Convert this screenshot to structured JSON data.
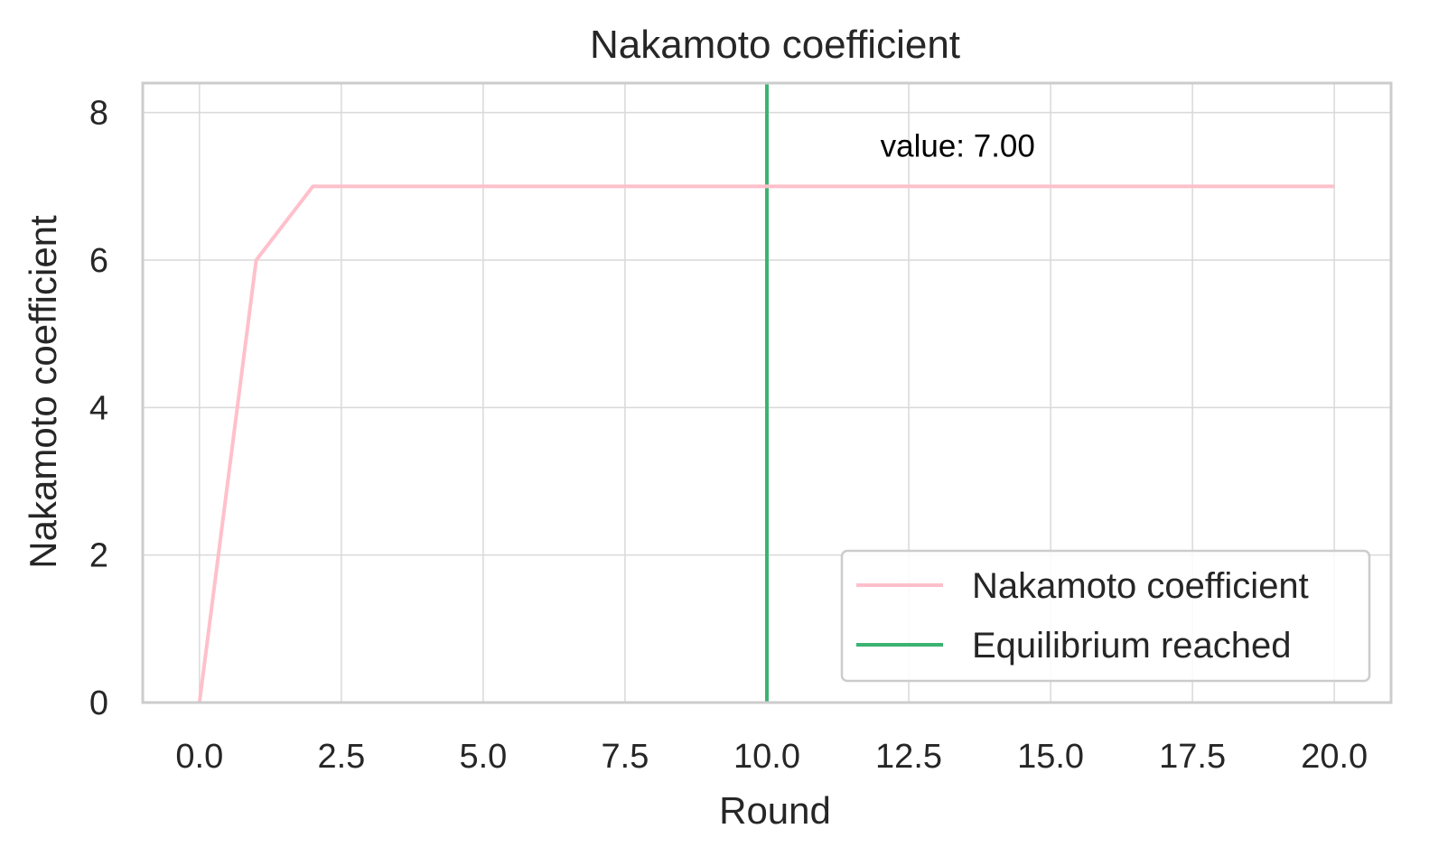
{
  "colors": {
    "series": "#ffc0cb",
    "equilibrium": "#3cb371",
    "grid": "#d9d9d9",
    "frame": "#cccccc",
    "text": "#262626"
  },
  "chart_data": {
    "type": "line",
    "title": "Nakamoto coefficient",
    "xlabel": "Round",
    "ylabel": "Nakamoto coefficient",
    "xlim": [
      -1,
      21
    ],
    "ylim": [
      0,
      8.4
    ],
    "grid": true,
    "x_ticks": [
      0,
      2.5,
      5,
      7.5,
      10,
      12.5,
      15,
      17.5,
      20
    ],
    "x_tick_labels": [
      "0.0",
      "2.5",
      "5.0",
      "7.5",
      "10.0",
      "12.5",
      "15.0",
      "17.5",
      "20.0"
    ],
    "y_ticks": [
      0,
      2,
      4,
      6,
      8
    ],
    "y_tick_labels": [
      "0",
      "2",
      "4",
      "6",
      "8"
    ],
    "series": [
      {
        "name": "Nakamoto coefficient",
        "color": "#ffc0cb",
        "x": [
          0,
          1,
          2,
          3,
          4,
          5,
          6,
          7,
          8,
          9,
          10,
          11,
          12,
          13,
          14,
          15,
          16,
          17,
          18,
          19,
          20
        ],
        "y": [
          0,
          6,
          7,
          7,
          7,
          7,
          7,
          7,
          7,
          7,
          7,
          7,
          7,
          7,
          7,
          7,
          7,
          7,
          7,
          7,
          7
        ]
      }
    ],
    "vlines": [
      {
        "name": "Equilibrium reached",
        "x": 10,
        "color": "#3cb371"
      }
    ],
    "annotations": [
      {
        "text": "value: 7.00",
        "x": 12,
        "y": 7.4
      }
    ],
    "legend": {
      "placement": "lower-right",
      "entries": [
        {
          "label": "Nakamoto coefficient",
          "color": "#ffc0cb"
        },
        {
          "label": "Equilibrium reached",
          "color": "#3cb371"
        }
      ]
    }
  }
}
